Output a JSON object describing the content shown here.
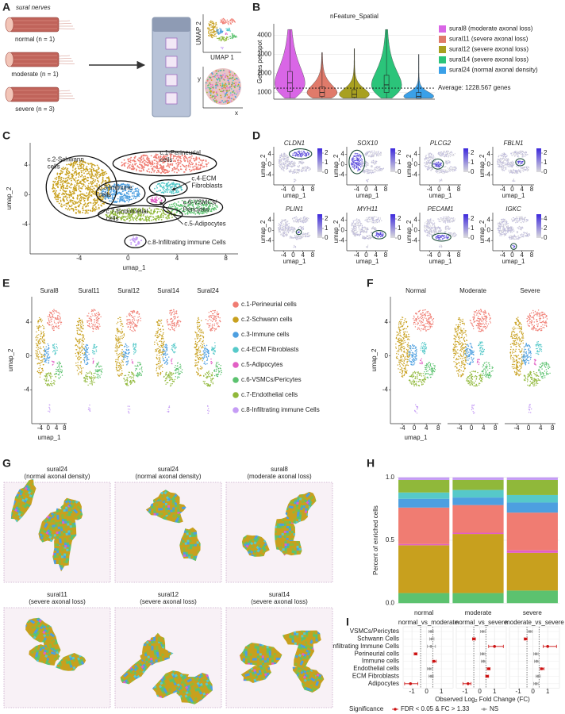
{
  "umap_axes": {
    "x_label": "umap_1",
    "y_label": "umap_2",
    "xlim": [
      -8,
      9
    ],
    "ylim": [
      -8,
      7
    ],
    "xticks": [
      -4,
      0,
      4,
      8
    ],
    "yticks": [
      -4,
      0,
      4
    ]
  },
  "panel_a": {
    "label": "A",
    "title": "sural nerves",
    "groups": [
      "normal (n = 1)",
      "moderate (n = 1)",
      "severe (n = 3)"
    ],
    "umap_x_label": "UMAP 1",
    "umap_y_label": "UMAP 2",
    "spatial_x_label": "x",
    "spatial_y_label": "y"
  },
  "panel_b": {
    "label": "B",
    "chart_data": {
      "type": "violin",
      "title": "nFeature_Spatial",
      "y_label": "Genes per spot",
      "ylim": [
        650,
        4600
      ],
      "yticks": [
        1000,
        2000,
        3000,
        4000
      ],
      "grid": true,
      "series": [
        {
          "name": "sural8 (moderate axonal loss)",
          "color": "#d966e6",
          "values": [
            700,
            1050,
            1500,
            2100,
            4300
          ]
        },
        {
          "name": "sural11 (severe axonal loss)",
          "color": "#e07a6a",
          "values": [
            700,
            800,
            1000,
            1300,
            3100
          ]
        },
        {
          "name": "sural12 (severe axonal loss)",
          "color": "#a8a020",
          "values": [
            700,
            750,
            900,
            1150,
            3300
          ]
        },
        {
          "name": "sural14 (severe axonal loss)",
          "color": "#2bc47a",
          "values": [
            700,
            1000,
            1400,
            1900,
            4300
          ]
        },
        {
          "name": "sural24 (normal axonal density)",
          "color": "#3aa0e8",
          "values": [
            700,
            700,
            800,
            1000,
            3000
          ]
        }
      ],
      "reference_line": {
        "value": 1228.567,
        "label": "Average: 1228.567 genes"
      }
    }
  },
  "panel_c": {
    "label": "C",
    "clusters": [
      [
        "c.1-Perineurial",
        "cells"
      ],
      [
        "c.2-Schwann",
        "cells"
      ],
      [
        "c.3-Immune",
        "cells"
      ],
      [
        "c.4-ECM",
        "Fibroblasts"
      ],
      [
        "c.5-Adipocytes"
      ],
      [
        "c.6-VSMCs/",
        "Pericytes"
      ],
      [
        "c.7-Endothelial",
        "cells"
      ],
      [
        "c.8-Infiltrating immune Cells"
      ]
    ]
  },
  "panel_d": {
    "label": "D",
    "genes": [
      {
        "name": "CLDN1",
        "colorbar_lim": [
          0,
          2.5
        ],
        "colorbar_ticks": [
          0,
          1,
          2
        ]
      },
      {
        "name": "SOX10",
        "colorbar_lim": [
          0,
          2.5
        ],
        "colorbar_ticks": [
          0,
          1,
          2
        ]
      },
      {
        "name": "PLCG2",
        "colorbar_lim": [
          0,
          2.5
        ],
        "colorbar_ticks": [
          0,
          1,
          2
        ]
      },
      {
        "name": "FBLN1",
        "colorbar_lim": [
          0,
          2.5
        ],
        "colorbar_ticks": [
          0,
          1,
          2
        ]
      },
      {
        "name": "PLIN1",
        "colorbar_lim": [
          0,
          2.5
        ],
        "colorbar_ticks": [
          0,
          1,
          2
        ]
      },
      {
        "name": "MYH11",
        "colorbar_lim": [
          0,
          2.5
        ],
        "colorbar_ticks": [
          0,
          1,
          2
        ]
      },
      {
        "name": "PECAM1",
        "colorbar_lim": [
          0,
          2.5
        ],
        "colorbar_ticks": [
          0,
          1,
          2
        ]
      },
      {
        "name": "IGKC",
        "colorbar_lim": [
          0,
          5
        ],
        "colorbar_ticks": [
          0,
          2,
          4
        ]
      }
    ]
  },
  "panel_e": {
    "label": "E",
    "samples": [
      "Sural8",
      "Sural11",
      "Sural12",
      "Sural14",
      "Sural24"
    ],
    "legend": [
      {
        "name": "c.1-Perineurial cells",
        "color": "#f07c72"
      },
      {
        "name": "c.2-Schwann cells",
        "color": "#c8a01e"
      },
      {
        "name": "c.3-Immune cells",
        "color": "#4d9fe0"
      },
      {
        "name": "c.4-ECM Fibroblasts",
        "color": "#56c9c9"
      },
      {
        "name": "c.5-Adipocytes",
        "color": "#e25fc4"
      },
      {
        "name": "c.6-VSMCs/Pericytes",
        "color": "#5cc26f"
      },
      {
        "name": "c.7-Endothelial cells",
        "color": "#90b83a"
      },
      {
        "name": "c.8-Infiltrating immune Cells",
        "color": "#c59cf5"
      }
    ]
  },
  "panel_f": {
    "label": "F",
    "groups": [
      "Normal",
      "Moderate",
      "Severe"
    ]
  },
  "panel_g": {
    "label": "G",
    "samples": [
      [
        "sural24",
        "(normal axonal density)"
      ],
      [
        "sural24",
        "(normal axonal density)"
      ],
      [
        "sural8",
        "(moderate axonal loss)"
      ],
      [
        "sural11",
        "(severe axonal loss)"
      ],
      [
        "sural12",
        "(severe axonal loss)"
      ],
      [
        "sural14",
        "(severe axonal loss)"
      ]
    ]
  },
  "panel_h": {
    "label": "H",
    "chart_data": {
      "type": "stacked_bar",
      "y_label": "Percent of enriched cells",
      "categories": [
        "normal",
        "moderate",
        "severe"
      ],
      "ylim": [
        -0.03,
        1.03
      ],
      "yticks": [
        {
          "value": 0,
          "label": "0.0"
        },
        0.5,
        {
          "value": 1,
          "label": "1.0"
        }
      ],
      "grid": true,
      "series": [
        {
          "color": "#5cc26f",
          "values": [
            0.08,
            0.08,
            0.1
          ]
        },
        {
          "color": "#c8a01e",
          "values": [
            0.38,
            0.47,
            0.3
          ]
        },
        {
          "color": "#e25fc4",
          "values": [
            0.01,
            0.01,
            0.02
          ]
        },
        {
          "color": "#f07c72",
          "values": [
            0.29,
            0.22,
            0.3
          ]
        },
        {
          "color": "#4d9fe0",
          "values": [
            0.07,
            0.06,
            0.08
          ]
        },
        {
          "color": "#56c9c9",
          "values": [
            0.05,
            0.06,
            0.06
          ]
        },
        {
          "color": "#90b83a",
          "values": [
            0.1,
            0.08,
            0.12
          ]
        },
        {
          "color": "#c59cf5",
          "values": [
            0.02,
            0.02,
            0.02
          ]
        }
      ]
    }
  },
  "panel_i": {
    "label": "I",
    "chart_data": {
      "type": "forest",
      "categories": [
        "VSMCs/Pericytes",
        "Schwann Cells",
        "Infiltrating Immune Cells",
        "Perineurial cells",
        "Immune cells",
        "Endothelial cells",
        "ECM Fibroblasts",
        "Adipocytes"
      ],
      "x_label": [
        "Observed Log",
        "2",
        " Fold Change (FC)"
      ],
      "xlim": [
        -1.6,
        1.8
      ],
      "xticks": [
        -1,
        0,
        1
      ],
      "thresholds": [
        -0.41,
        0.41
      ],
      "grid": true,
      "facets": [
        {
          "title": "normal_vs_moderate",
          "values": [
            0.3,
            0.35,
            0.3,
            -0.75,
            0.5,
            0.2,
            0.3,
            -1.1
          ],
          "lower": [
            0.15,
            0.2,
            0.05,
            -0.85,
            0.4,
            0.05,
            0.15,
            -1.5
          ],
          "upper": [
            0.45,
            0.5,
            0.6,
            -0.65,
            0.65,
            0.35,
            0.45,
            -0.6
          ],
          "group": [
            1,
            1,
            1,
            0,
            0,
            1,
            1,
            0
          ]
        },
        {
          "title": "normal_vs_severe",
          "values": [
            0.2,
            -0.4,
            1.0,
            0.2,
            0.25,
            0.6,
            0.5,
            -0.8
          ],
          "lower": [
            0.05,
            -0.5,
            0.6,
            0.05,
            0.1,
            0.5,
            0.4,
            -1.15
          ],
          "upper": [
            0.35,
            -0.3,
            1.6,
            0.35,
            0.4,
            0.7,
            0.6,
            -0.6
          ],
          "group": [
            1,
            0,
            0,
            1,
            1,
            0,
            0,
            0
          ]
        },
        {
          "title": "moderate_vs_severe",
          "values": [
            -0.2,
            -0.5,
            1.0,
            0.2,
            0.25,
            0.6,
            0.35,
            0.2
          ],
          "lower": [
            -0.35,
            -0.6,
            0.7,
            0.05,
            0.1,
            0.5,
            0.2,
            0.05
          ],
          "upper": [
            -0.05,
            -0.4,
            1.6,
            0.35,
            0.4,
            0.75,
            0.5,
            0.35
          ],
          "group": [
            1,
            0,
            0,
            1,
            1,
            0,
            1,
            1
          ]
        }
      ],
      "legend": {
        "title": "Significance",
        "items": [
          {
            "label": "FDR < 0.05 & FC > 1.33",
            "color": "#cc1111"
          },
          {
            "label": "NS",
            "color": "#9a9a9a"
          }
        ]
      }
    }
  }
}
